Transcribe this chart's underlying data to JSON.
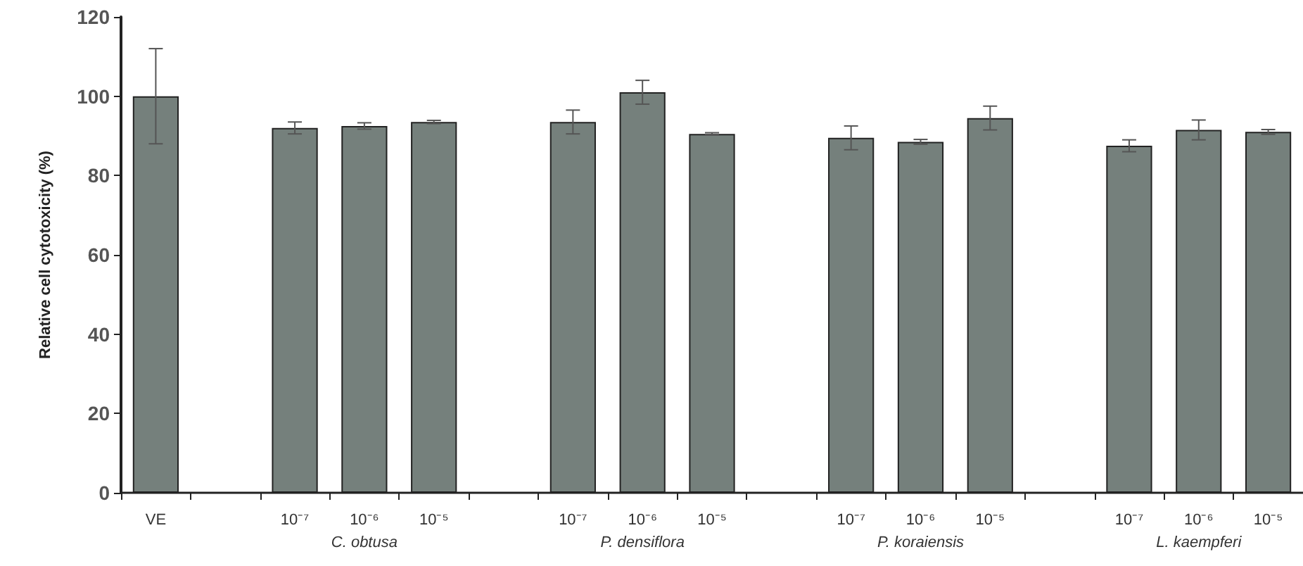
{
  "chart_data": {
    "type": "bar",
    "ylabel": "Relative cell cytotoxicity (%)",
    "categories": [
      "VE",
      null,
      "10⁻⁷",
      "10⁻⁶",
      "10⁻⁵",
      null,
      "10⁻⁷",
      "10⁻⁶",
      "10⁻⁵",
      null,
      "10⁻⁷",
      "10⁻⁶",
      "10⁻⁵",
      null,
      "10⁻⁷",
      "10⁻⁶",
      "10⁻⁵"
    ],
    "values": [
      100,
      null,
      92,
      92.5,
      93.5,
      null,
      93.5,
      101,
      90.5,
      null,
      89.5,
      88.5,
      94.5,
      null,
      87.5,
      91.5,
      91
    ],
    "errors": [
      12,
      null,
      1.5,
      0.8,
      0.4,
      null,
      3,
      3,
      0.3,
      null,
      3,
      0.6,
      3,
      null,
      1.5,
      2.5,
      0.6
    ],
    "color": "#75807c",
    "ylim": [
      0,
      120
    ],
    "yticks": [
      0,
      20,
      40,
      60,
      80,
      100,
      120
    ],
    "grid": false,
    "annotations": [
      "C. obtusa",
      "P. densiflora",
      "P. koraiensis",
      "L. kaempferi"
    ]
  }
}
